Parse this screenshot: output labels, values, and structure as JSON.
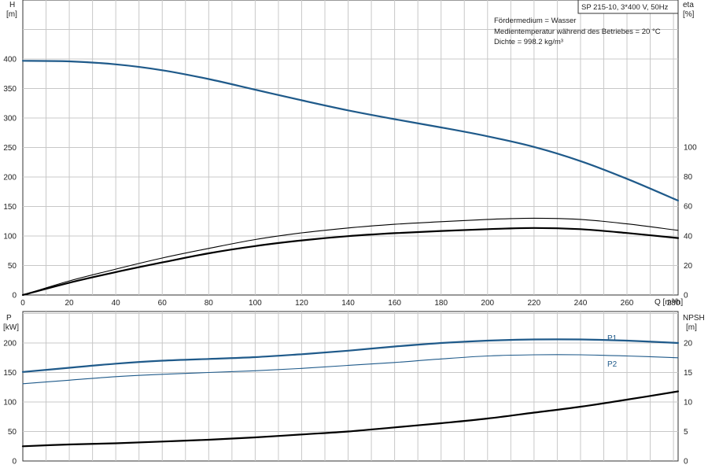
{
  "title": "SP 215-10, 3*400 V, 50Hz",
  "info_lines": [
    "Fördermedium = Wasser",
    "Medientemperatur während des Betriebes = 20 °C",
    "Dichte = 998.2 kg/m³"
  ],
  "colors": {
    "blue": "#1f5a8a",
    "black": "#000000",
    "grid": "#c8c8c8"
  },
  "chart_data": [
    {
      "type": "line",
      "panel": "top",
      "grid": true,
      "xlabel": "Q [m³/h]",
      "ylabel_left": [
        "H",
        "[m]"
      ],
      "ylabel_right": [
        "eta",
        "[%]"
      ],
      "xlim": [
        0,
        282
      ],
      "x_ticks": [
        0,
        20,
        40,
        60,
        80,
        100,
        120,
        140,
        160,
        180,
        200,
        220,
        240,
        260,
        280
      ],
      "ylim_left": [
        0,
        400
      ],
      "y_ticks_left": [
        0,
        50,
        100,
        150,
        200,
        250,
        300,
        350,
        400
      ],
      "ylim_right": [
        0,
        100
      ],
      "y_ticks_right": [
        0,
        20,
        40,
        60,
        80,
        100
      ],
      "series": [
        {
          "axis": "left",
          "color": "#1f5a8a",
          "width": 2.2,
          "points": [
            [
              0,
              397
            ],
            [
              20,
              396
            ],
            [
              40,
              391
            ],
            [
              60,
              381
            ],
            [
              80,
              366
            ],
            [
              100,
              348
            ],
            [
              120,
              330
            ],
            [
              140,
              313
            ],
            [
              160,
              298
            ],
            [
              180,
              284
            ],
            [
              200,
              269
            ],
            [
              220,
              251
            ],
            [
              240,
              227
            ],
            [
              260,
              197
            ],
            [
              282,
              160
            ]
          ]
        },
        {
          "axis": "right",
          "color": "#000000",
          "width": 1.1,
          "points": [
            [
              0,
              0
            ],
            [
              20,
              9.5
            ],
            [
              40,
              17.5
            ],
            [
              60,
              25
            ],
            [
              80,
              31.5
            ],
            [
              100,
              37.5
            ],
            [
              120,
              42
            ],
            [
              140,
              45.3
            ],
            [
              160,
              47.8
            ],
            [
              180,
              49.6
            ],
            [
              200,
              51.1
            ],
            [
              220,
              51.9
            ],
            [
              240,
              51.1
            ],
            [
              260,
              48.1
            ],
            [
              282,
              43.7
            ]
          ]
        },
        {
          "axis": "right",
          "color": "#000000",
          "width": 2.2,
          "points": [
            [
              0,
              0
            ],
            [
              20,
              8.3
            ],
            [
              40,
              15.5
            ],
            [
              60,
              22
            ],
            [
              80,
              28.2
            ],
            [
              100,
              33.1
            ],
            [
              120,
              36.9
            ],
            [
              140,
              39.8
            ],
            [
              160,
              41.8
            ],
            [
              180,
              43.3
            ],
            [
              200,
              44.5
            ],
            [
              220,
              45.3
            ],
            [
              240,
              44.5
            ],
            [
              260,
              41.9
            ],
            [
              282,
              38.5
            ]
          ]
        }
      ]
    },
    {
      "type": "line",
      "panel": "bottom",
      "grid": true,
      "ylabel_left": [
        "P",
        "[kW]"
      ],
      "ylabel_right": [
        "NPSH",
        "[m]"
      ],
      "xlim": [
        0,
        282
      ],
      "ylim_left": [
        0,
        200
      ],
      "y_ticks_left": [
        0,
        50,
        100,
        150,
        200
      ],
      "ylim_right": [
        0,
        20
      ],
      "y_ticks_right": [
        0,
        5,
        10,
        15,
        20
      ],
      "series": [
        {
          "name": "P1",
          "axis": "left",
          "color": "#1f5a8a",
          "width": 2.2,
          "points": [
            [
              0,
              151
            ],
            [
              20,
              158
            ],
            [
              40,
              165
            ],
            [
              60,
              170
            ],
            [
              80,
              173
            ],
            [
              100,
              176
            ],
            [
              120,
              181
            ],
            [
              140,
              187
            ],
            [
              160,
              194
            ],
            [
              180,
              200
            ],
            [
              200,
              204
            ],
            [
              220,
              206
            ],
            [
              240,
              206
            ],
            [
              260,
              204
            ],
            [
              282,
              200
            ]
          ]
        },
        {
          "name": "P2",
          "axis": "left",
          "color": "#1f5a8a",
          "width": 1.1,
          "points": [
            [
              0,
              131
            ],
            [
              20,
              137
            ],
            [
              40,
              143
            ],
            [
              60,
              147
            ],
            [
              80,
              150
            ],
            [
              100,
              153
            ],
            [
              120,
              157
            ],
            [
              140,
              162
            ],
            [
              160,
              167
            ],
            [
              180,
              173
            ],
            [
              200,
              178
            ],
            [
              220,
              180
            ],
            [
              240,
              180
            ],
            [
              260,
              178
            ],
            [
              282,
              175
            ]
          ]
        },
        {
          "axis": "right",
          "color": "#000000",
          "width": 2.2,
          "points": [
            [
              0,
              2.5
            ],
            [
              20,
              2.8
            ],
            [
              40,
              3.0
            ],
            [
              60,
              3.3
            ],
            [
              80,
              3.6
            ],
            [
              100,
              4.0
            ],
            [
              120,
              4.5
            ],
            [
              140,
              5.0
            ],
            [
              160,
              5.7
            ],
            [
              180,
              6.4
            ],
            [
              200,
              7.2
            ],
            [
              220,
              8.2
            ],
            [
              240,
              9.2
            ],
            [
              260,
              10.4
            ],
            [
              282,
              11.8
            ]
          ]
        }
      ]
    }
  ]
}
